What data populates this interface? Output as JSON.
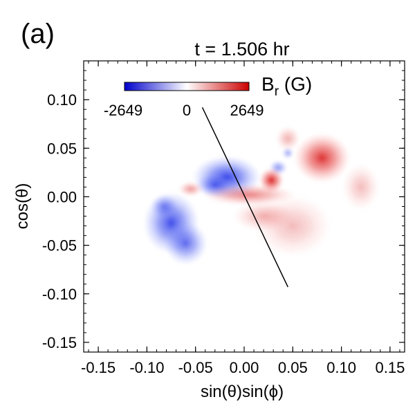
{
  "chart_data": {
    "type": "heatmap",
    "panel_label": "(a)",
    "title": "t = 1.506 hr",
    "xlabel": "sin(θ)sin(ϕ)",
    "ylabel": "cos(θ)",
    "xlim": [
      -0.165,
      0.165
    ],
    "ylim": [
      -0.16,
      0.14
    ],
    "x_ticks": [
      -0.15,
      -0.1,
      -0.05,
      0.0,
      0.05,
      0.1,
      0.15
    ],
    "x_tick_labels": [
      "-0.15",
      "-0.10",
      "-0.05",
      "0.00",
      "0.05",
      "0.10",
      "0.15"
    ],
    "y_ticks": [
      0.1,
      0.05,
      0.0,
      -0.05,
      -0.1,
      -0.15
    ],
    "y_tick_labels": [
      "0.10",
      "0.05",
      "0.00",
      "-0.05",
      "-0.10",
      "-0.15"
    ],
    "colorbar": {
      "label_main": "B",
      "label_sub": "r",
      "label_unit": " (G)",
      "min": -2649,
      "mid": 0,
      "max": 2649,
      "tick_labels": [
        "-2649",
        "0",
        "2649"
      ],
      "colors": [
        "#0000cc",
        "#ffffff",
        "#cc0000"
      ]
    },
    "cut_line": {
      "start": [
        -0.043,
        0.092
      ],
      "end": [
        0.045,
        -0.093
      ]
    },
    "field_regions": [
      {
        "polarity": "negative",
        "x": -0.075,
        "y": -0.027,
        "rx": 0.018,
        "ry": 0.02,
        "strength": 0.85
      },
      {
        "polarity": "negative",
        "x": -0.06,
        "y": -0.048,
        "rx": 0.014,
        "ry": 0.014,
        "strength": 0.7
      },
      {
        "polarity": "negative",
        "x": -0.082,
        "y": -0.01,
        "rx": 0.009,
        "ry": 0.008,
        "strength": 0.55
      },
      {
        "polarity": "negative",
        "x": -0.018,
        "y": 0.02,
        "rx": 0.022,
        "ry": 0.014,
        "strength": 0.9
      },
      {
        "polarity": "negative",
        "x": -0.03,
        "y": 0.012,
        "rx": 0.012,
        "ry": 0.008,
        "strength": 0.7
      },
      {
        "polarity": "negative",
        "x": 0.035,
        "y": 0.03,
        "rx": 0.006,
        "ry": 0.005,
        "strength": 0.5
      },
      {
        "polarity": "negative",
        "x": 0.045,
        "y": 0.045,
        "rx": 0.004,
        "ry": 0.004,
        "strength": 0.4
      },
      {
        "polarity": "positive",
        "x": 0.08,
        "y": 0.04,
        "rx": 0.018,
        "ry": 0.016,
        "strength": 0.9
      },
      {
        "polarity": "positive",
        "x": 0.028,
        "y": 0.017,
        "rx": 0.008,
        "ry": 0.008,
        "strength": 0.95
      },
      {
        "polarity": "positive",
        "x": 0.005,
        "y": 0.002,
        "rx": 0.03,
        "ry": 0.007,
        "strength": 0.55
      },
      {
        "polarity": "positive",
        "x": 0.05,
        "y": -0.03,
        "rx": 0.025,
        "ry": 0.02,
        "strength": 0.3
      },
      {
        "polarity": "positive",
        "x": -0.055,
        "y": 0.008,
        "rx": 0.008,
        "ry": 0.005,
        "strength": 0.45
      },
      {
        "polarity": "positive",
        "x": 0.045,
        "y": 0.06,
        "rx": 0.008,
        "ry": 0.008,
        "strength": 0.35
      },
      {
        "polarity": "positive",
        "x": 0.12,
        "y": 0.01,
        "rx": 0.012,
        "ry": 0.015,
        "strength": 0.3
      },
      {
        "polarity": "positive",
        "x": 0.02,
        "y": -0.02,
        "rx": 0.02,
        "ry": 0.01,
        "strength": 0.35
      }
    ]
  }
}
